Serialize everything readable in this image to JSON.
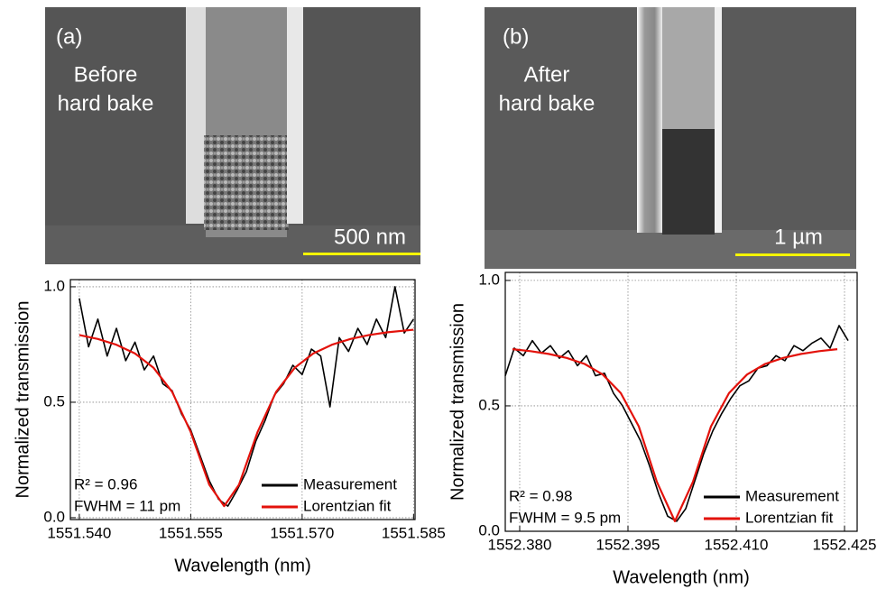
{
  "panels": [
    {
      "label": "(a)",
      "caption": [
        "Before",
        "hard bake"
      ],
      "scale_bar": "500 nm"
    },
    {
      "label": "(b)",
      "caption": [
        "After",
        "hard bake"
      ],
      "scale_bar": "1 µm"
    }
  ],
  "chart_data": [
    {
      "type": "line",
      "xlabel": "Wavelength (nm)",
      "ylabel": "Normalized transmission",
      "xlim": [
        1551.5388,
        1551.5852
      ],
      "ylim": [
        -0.008,
        1.031
      ],
      "xticks": [
        {
          "value": 1551.54,
          "label": "1551.540"
        },
        {
          "value": 1551.555,
          "label": "1551.555"
        },
        {
          "value": 1551.57,
          "label": "1551.570"
        },
        {
          "value": 1551.585,
          "label": "1551.585"
        }
      ],
      "yticks": [
        {
          "value": 0,
          "label": "0.0"
        },
        0.5,
        {
          "value": 1,
          "label": "1.0"
        }
      ],
      "grid": true,
      "legend": "lower right",
      "annotations": [
        "R² = 0.96",
        "FWHM = 11 pm"
      ],
      "series": [
        {
          "name": "Measurement",
          "color": "#000000",
          "x": [
            1551.54,
            1551.54125,
            1551.5425,
            1551.54375,
            1551.545,
            1551.54625,
            1551.5475,
            1551.54875,
            1551.55,
            1551.55125,
            1551.5525,
            1551.55375,
            1551.555,
            1551.55625,
            1551.5575,
            1551.55875,
            1551.56,
            1551.56125,
            1551.5625,
            1551.56375,
            1551.565,
            1551.56625,
            1551.5675,
            1551.56875,
            1551.57,
            1551.57125,
            1551.5725,
            1551.57375,
            1551.575,
            1551.57625,
            1551.5775,
            1551.57875,
            1551.58,
            1551.58125,
            1551.5825,
            1551.58375,
            1551.585
          ],
          "values": [
            0.95,
            0.74,
            0.86,
            0.7,
            0.82,
            0.68,
            0.76,
            0.64,
            0.7,
            0.58,
            0.55,
            0.45,
            0.38,
            0.27,
            0.16,
            0.08,
            0.05,
            0.12,
            0.2,
            0.33,
            0.42,
            0.53,
            0.58,
            0.66,
            0.62,
            0.73,
            0.7,
            0.48,
            0.78,
            0.72,
            0.82,
            0.75,
            0.86,
            0.78,
            1.0,
            0.8,
            0.86
          ]
        },
        {
          "name": "Lorentzian fit",
          "color": "#e3120b",
          "x": [
            1551.54,
            1551.5425,
            1551.545,
            1551.5475,
            1551.55,
            1551.5525,
            1551.555,
            1551.5575,
            1551.5595,
            1551.5615,
            1551.564,
            1551.5665,
            1551.569,
            1551.5715,
            1551.574,
            1551.5765,
            1551.579,
            1551.5815,
            1551.585
          ],
          "values": [
            0.791,
            0.774,
            0.749,
            0.711,
            0.649,
            0.545,
            0.371,
            0.143,
            0.05,
            0.143,
            0.371,
            0.545,
            0.649,
            0.711,
            0.749,
            0.774,
            0.791,
            0.803,
            0.814
          ]
        }
      ]
    },
    {
      "type": "line",
      "xlabel": "Wavelength (nm)",
      "ylabel": "Normalized transmission",
      "xlim": [
        1552.378,
        1552.42675
      ],
      "ylim": [
        0,
        1.032
      ],
      "xticks": [
        {
          "value": 1552.38,
          "label": "1552.380"
        },
        {
          "value": 1552.395,
          "label": "1552.395"
        },
        {
          "value": 1552.41,
          "label": "1552.410"
        },
        {
          "value": 1552.425,
          "label": "1552.425"
        }
      ],
      "yticks": [
        {
          "value": 0,
          "label": "0.0"
        },
        0.5,
        {
          "value": 1,
          "label": "1.0"
        }
      ],
      "grid": true,
      "legend": "lower right",
      "annotations": [
        "R² = 0.98",
        "FWHM = 9.5 pm"
      ],
      "series": [
        {
          "name": "Measurement",
          "color": "#000000",
          "x": [
            1552.378,
            1552.37925,
            1552.3805,
            1552.38175,
            1552.383,
            1552.38425,
            1552.3855,
            1552.38675,
            1552.388,
            1552.38925,
            1552.3905,
            1552.39175,
            1552.393,
            1552.39425,
            1552.3955,
            1552.39675,
            1552.398,
            1552.39925,
            1552.4005,
            1552.40175,
            1552.403,
            1552.40425,
            1552.4055,
            1552.40675,
            1552.408,
            1552.40925,
            1552.4105,
            1552.41175,
            1552.413,
            1552.41425,
            1552.4155,
            1552.41675,
            1552.418,
            1552.41925,
            1552.4205,
            1552.42175,
            1552.423,
            1552.42425,
            1552.4255
          ],
          "values": [
            0.62,
            0.73,
            0.7,
            0.76,
            0.71,
            0.74,
            0.69,
            0.72,
            0.66,
            0.7,
            0.62,
            0.63,
            0.55,
            0.5,
            0.43,
            0.36,
            0.26,
            0.15,
            0.06,
            0.04,
            0.09,
            0.2,
            0.31,
            0.4,
            0.47,
            0.53,
            0.58,
            0.6,
            0.65,
            0.66,
            0.7,
            0.68,
            0.74,
            0.72,
            0.75,
            0.77,
            0.73,
            0.82,
            0.76
          ]
        },
        {
          "name": "Lorentzian fit",
          "color": "#e3120b",
          "x": [
            1552.379,
            1552.3815,
            1552.384,
            1552.3865,
            1552.389,
            1552.3915,
            1552.394,
            1552.3965,
            1552.399,
            1552.4015,
            1552.404,
            1552.4065,
            1552.409,
            1552.4115,
            1552.414,
            1552.4165,
            1552.419,
            1552.4215,
            1552.424
          ],
          "values": [
            0.726,
            0.718,
            0.707,
            0.691,
            0.667,
            0.625,
            0.551,
            0.418,
            0.197,
            0.04,
            0.197,
            0.418,
            0.551,
            0.625,
            0.667,
            0.691,
            0.707,
            0.718,
            0.726
          ]
        }
      ]
    }
  ]
}
